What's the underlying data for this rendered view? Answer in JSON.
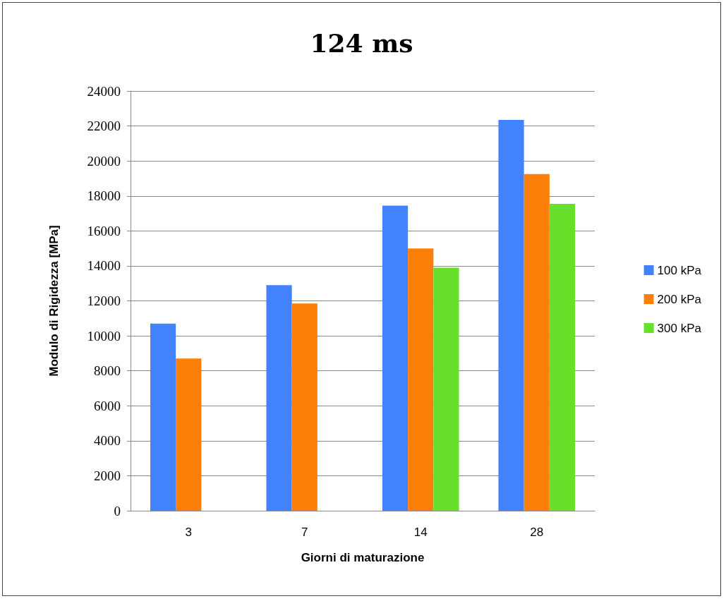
{
  "chart_data": {
    "type": "bar",
    "title": "124 ms",
    "xlabel": "Giorni di maturazione",
    "ylabel": "Modulo di Rigidezza [MPa]",
    "categories": [
      "3",
      "7",
      "14",
      "28"
    ],
    "series": [
      {
        "name": "100 kPa",
        "color": "#4282fc",
        "values": [
          10700,
          12900,
          17450,
          22350
        ]
      },
      {
        "name": "200 kPa",
        "color": "#fc7f0a",
        "values": [
          8700,
          11850,
          15000,
          19250
        ]
      },
      {
        "name": "300 kPa",
        "color": "#66e02a",
        "values": [
          null,
          null,
          13900,
          17550
        ]
      }
    ],
    "ylim": [
      0,
      24000
    ],
    "yticks": [
      0,
      2000,
      4000,
      6000,
      8000,
      10000,
      12000,
      14000,
      16000,
      18000,
      20000,
      22000,
      24000
    ],
    "grid": "y",
    "legend": "right"
  }
}
